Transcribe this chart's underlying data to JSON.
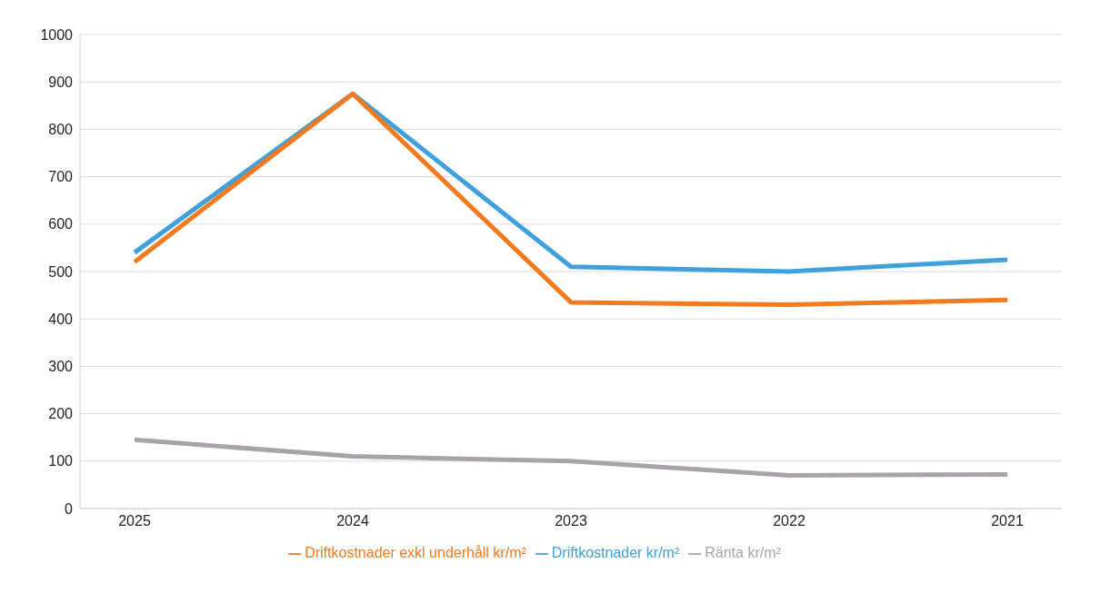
{
  "chart_data": {
    "type": "line",
    "categories": [
      "2025",
      "2024",
      "2023",
      "2022",
      "2021"
    ],
    "series": [
      {
        "name": "Driftkostnader kr/m²",
        "color": "#3fa0dc",
        "values": [
          540,
          875,
          510,
          500,
          525
        ]
      },
      {
        "name": "Driftkostnader exkl underhåll kr/m²",
        "color": "#f47a20",
        "values": [
          520,
          875,
          435,
          430,
          440
        ]
      },
      {
        "name": "Ränta kr/m²",
        "color": "#a8a3a9",
        "values": [
          145,
          110,
          100,
          70,
          72
        ]
      }
    ],
    "ylim": [
      0,
      1000
    ],
    "yticks": [
      0,
      100,
      200,
      300,
      400,
      500,
      600,
      700,
      800,
      900,
      1000
    ],
    "grid": "y",
    "legend": "bottom",
    "marker": "none",
    "line_style": "solid"
  }
}
